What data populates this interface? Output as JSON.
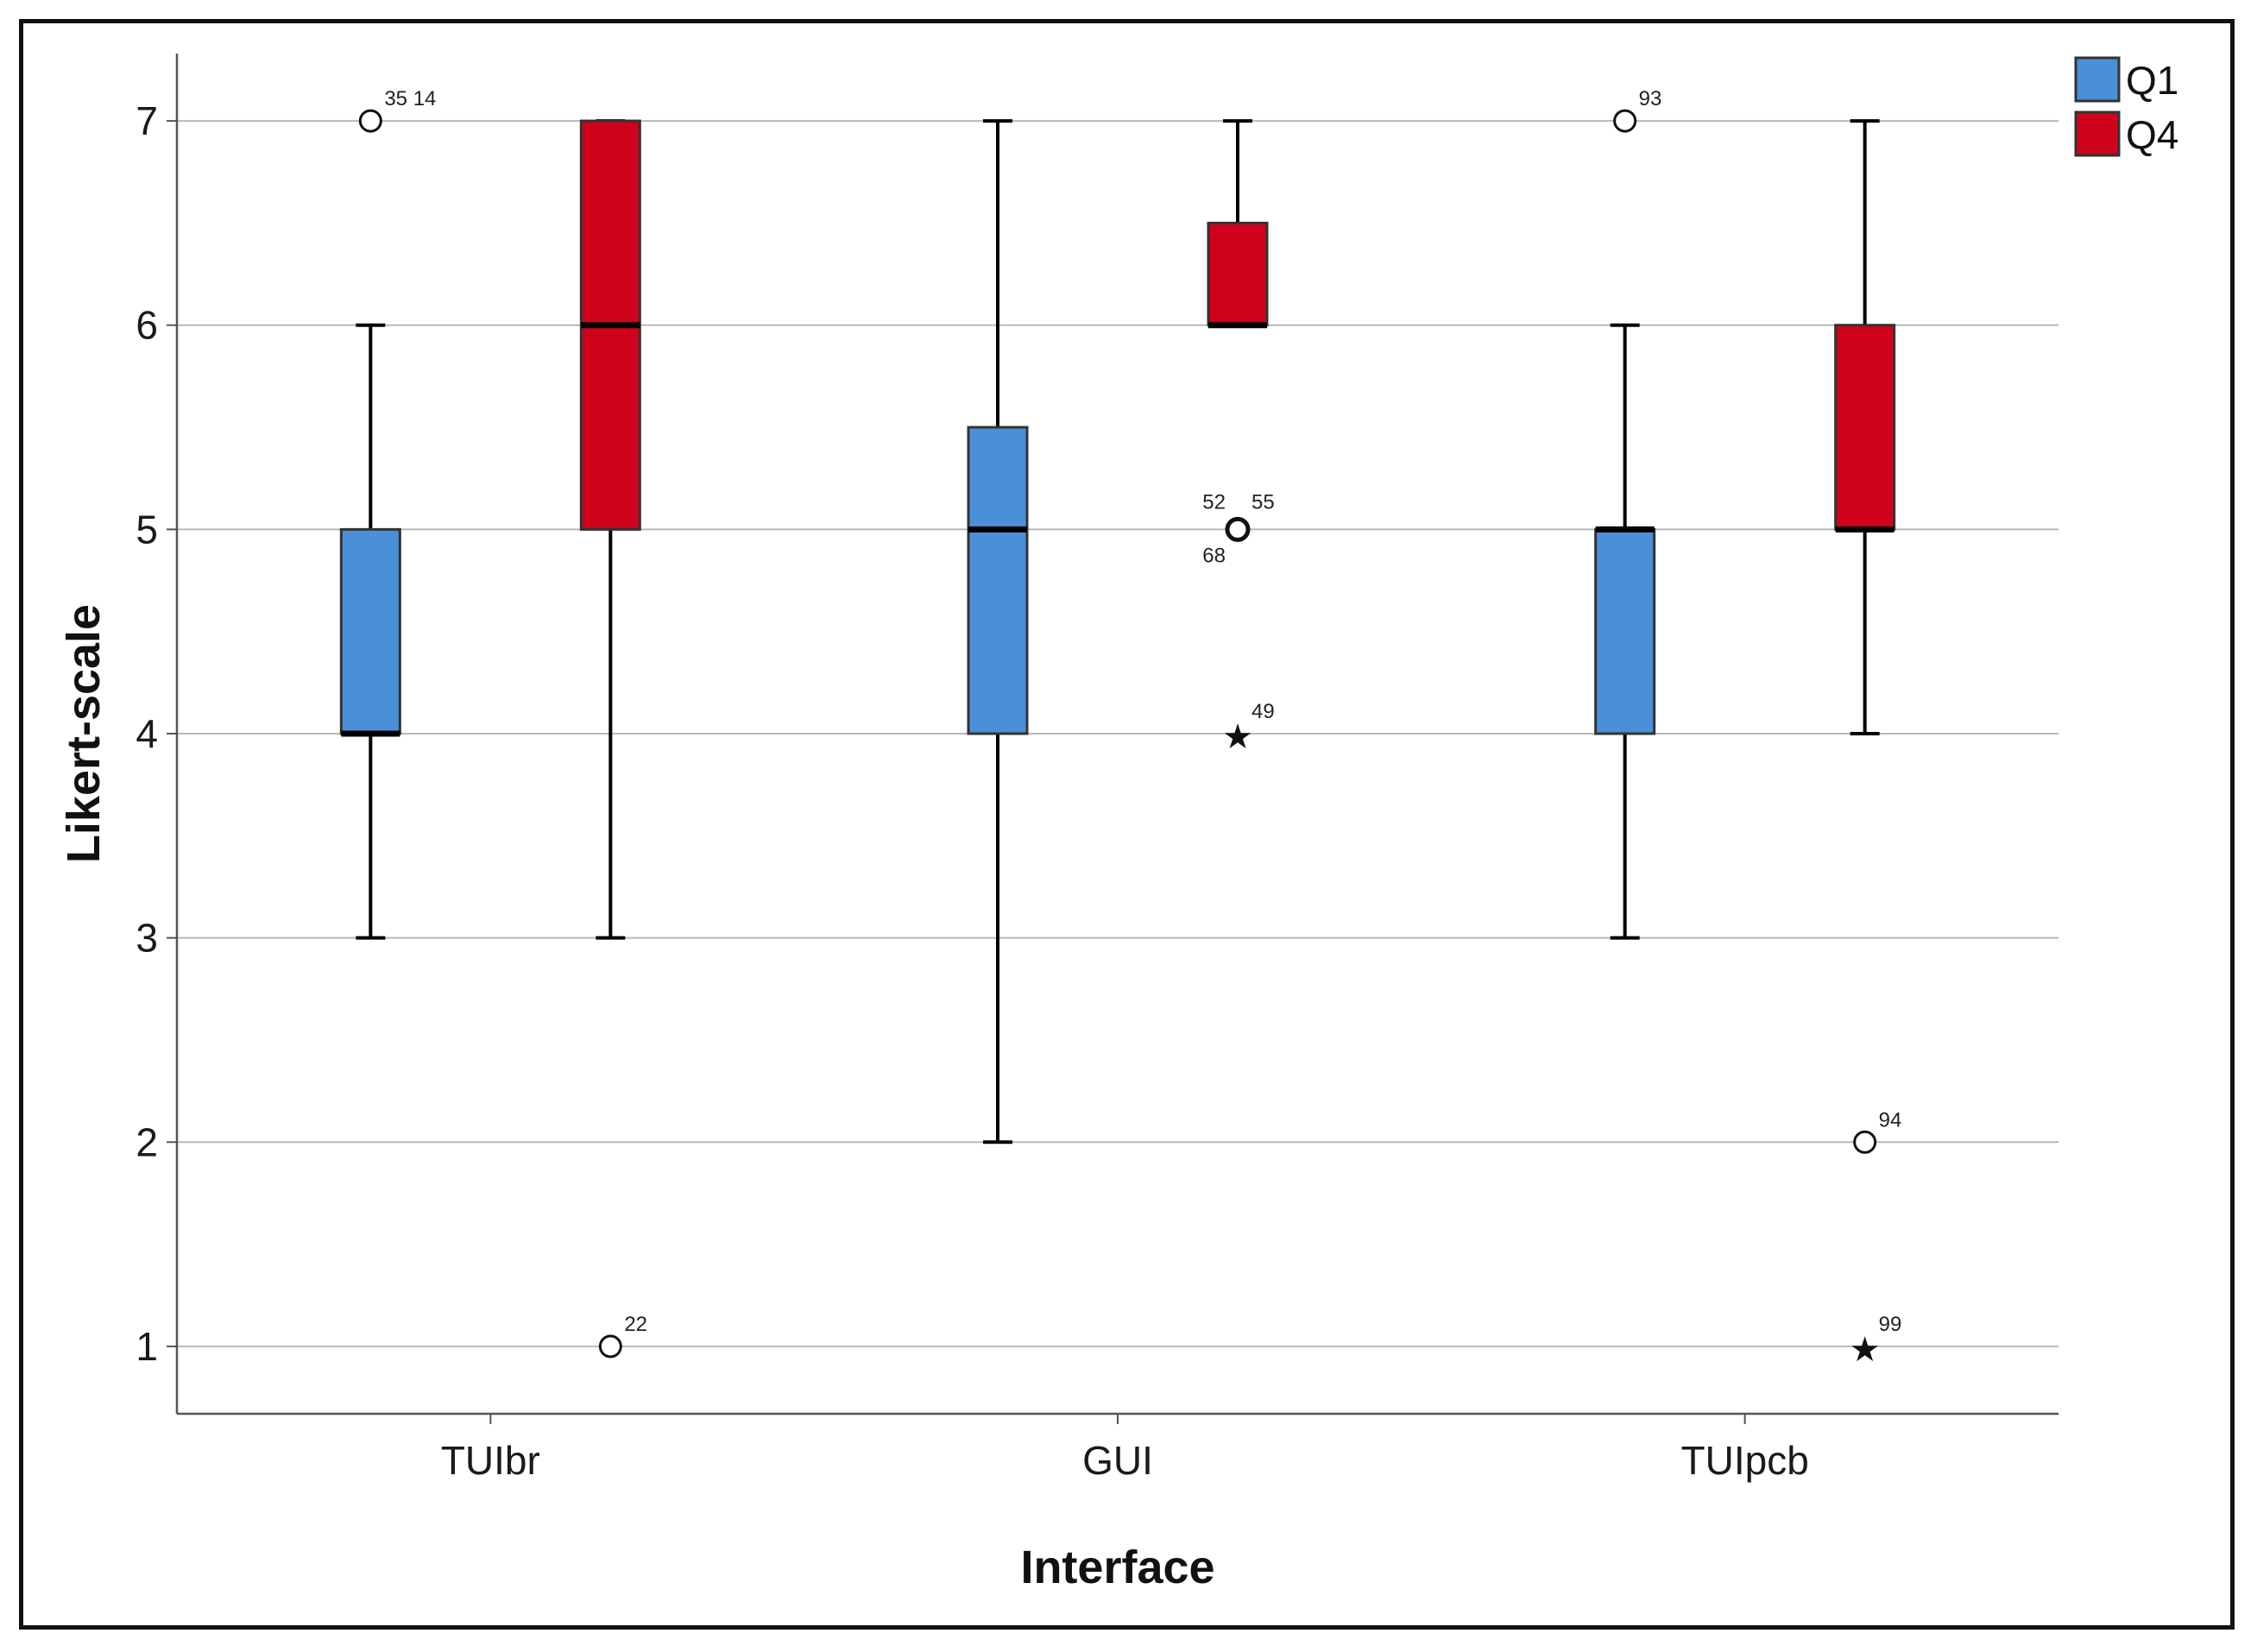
{
  "chart_data": {
    "type": "boxplot",
    "title": "",
    "xlabel": "Interface",
    "ylabel": "Likert-scale",
    "ylim": [
      0.67,
      7.33
    ],
    "yticks": [
      1,
      2,
      3,
      4,
      5,
      6,
      7
    ],
    "grid": "horizontal",
    "legend_position": "top-right",
    "categories": [
      "TUIbr",
      "GUI",
      "TUIpcb"
    ],
    "series": [
      {
        "name": "Q1",
        "color": "#4a90d9",
        "boxes": [
          {
            "category": "TUIbr",
            "whisker_low": 3,
            "q1": 4,
            "median": 4,
            "q3": 5,
            "whisker_high": 6,
            "outliers": [
              {
                "value": 7,
                "marker": "circle",
                "label": "35 14"
              }
            ]
          },
          {
            "category": "GUI",
            "whisker_low": 2,
            "q1": 4,
            "median": 5,
            "q3": 5.5,
            "whisker_high": 7,
            "outliers": []
          },
          {
            "category": "TUIpcb",
            "whisker_low": 3,
            "q1": 4,
            "median": 5,
            "q3": 5,
            "whisker_high": 6,
            "outliers": [
              {
                "value": 7,
                "marker": "circle",
                "label": "93"
              }
            ]
          }
        ]
      },
      {
        "name": "Q4",
        "color": "#d0021b",
        "boxes": [
          {
            "category": "TUIbr",
            "whisker_low": 3,
            "q1": 5,
            "median": 6,
            "q3": 7,
            "whisker_high": 7,
            "outliers": [
              {
                "value": 1,
                "marker": "circle",
                "label": "22"
              }
            ]
          },
          {
            "category": "GUI",
            "whisker_low": 6,
            "q1": 6,
            "median": 6,
            "q3": 6.5,
            "whisker_high": 7,
            "outliers": [
              {
                "value": 5,
                "marker": "circle",
                "label": "52",
                "label_pos": "upper-left"
              },
              {
                "value": 5,
                "marker": "circle",
                "label": "55",
                "label_pos": "upper-right"
              },
              {
                "value": 5,
                "marker": "circle",
                "label": "68",
                "label_pos": "lower-left"
              },
              {
                "value": 4,
                "marker": "star",
                "label": "49"
              }
            ]
          },
          {
            "category": "TUIpcb",
            "whisker_low": 4,
            "q1": 5,
            "median": 5,
            "q3": 6,
            "whisker_high": 7,
            "outliers": [
              {
                "value": 2,
                "marker": "circle",
                "label": "94"
              },
              {
                "value": 1,
                "marker": "star",
                "label": "99"
              }
            ]
          }
        ]
      }
    ]
  }
}
